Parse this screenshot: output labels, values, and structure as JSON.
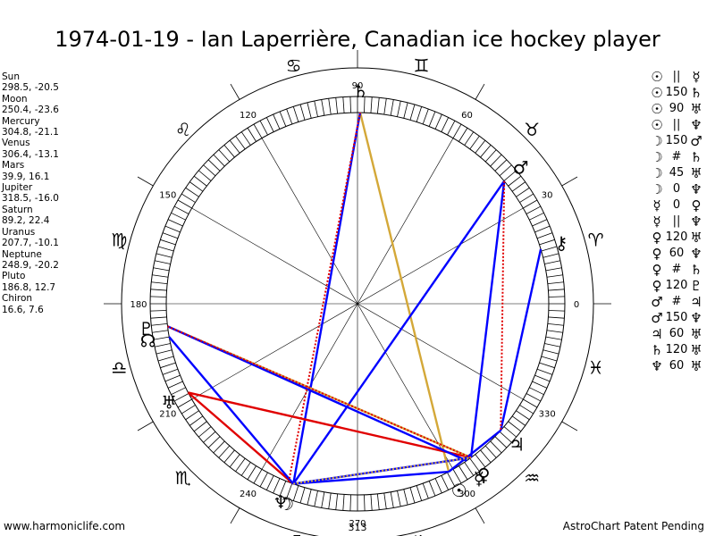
{
  "title": "1974-01-19 - Ian Laperrière, Canadian ice hockey player",
  "footer": {
    "left": "www.harmoniclife.com",
    "right": "AstroChart Patent Pending",
    "bottom_marker": "313"
  },
  "planet_positions": [
    {
      "name": "Sun",
      "values": "298.5, -20.5"
    },
    {
      "name": "Moon",
      "values": "250.4, -23.6"
    },
    {
      "name": "Mercury",
      "values": "304.8, -21.1"
    },
    {
      "name": "Venus",
      "values": "306.4, -13.1"
    },
    {
      "name": "Mars",
      "values": "39.9, 16.1"
    },
    {
      "name": "Jupiter",
      "values": "318.5, -16.0"
    },
    {
      "name": "Saturn",
      "values": "89.2, 22.4"
    },
    {
      "name": "Uranus",
      "values": "207.7, -10.1"
    },
    {
      "name": "Neptune",
      "values": "248.9, -20.2"
    },
    {
      "name": "Pluto",
      "values": "186.8, 12.7"
    },
    {
      "name": "Chiron",
      "values": "16.6, 7.6"
    }
  ],
  "aspects": [
    {
      "p1": "☉",
      "sym": "||",
      "p2": "☿"
    },
    {
      "p1": "☉",
      "sym": "150",
      "p2": "♄"
    },
    {
      "p1": "☉",
      "sym": "90",
      "p2": "♅"
    },
    {
      "p1": "☉",
      "sym": "||",
      "p2": "♆"
    },
    {
      "p1": "☽",
      "sym": "150",
      "p2": "♂"
    },
    {
      "p1": "☽",
      "sym": "#",
      "p2": "♄"
    },
    {
      "p1": "☽",
      "sym": "45",
      "p2": "♅"
    },
    {
      "p1": "☽",
      "sym": "0",
      "p2": "♆"
    },
    {
      "p1": "☿",
      "sym": "0",
      "p2": "♀"
    },
    {
      "p1": "☿",
      "sym": "||",
      "p2": "♆"
    },
    {
      "p1": "♀",
      "sym": "120",
      "p2": "♅"
    },
    {
      "p1": "♀",
      "sym": "60",
      "p2": "♆"
    },
    {
      "p1": "♀",
      "sym": "#",
      "p2": "♄"
    },
    {
      "p1": "♀",
      "sym": "120",
      "p2": "♇"
    },
    {
      "p1": "♂",
      "sym": "#",
      "p2": "♃"
    },
    {
      "p1": "♂",
      "sym": "150",
      "p2": "♆"
    },
    {
      "p1": "♃",
      "sym": "60",
      "p2": "♅"
    },
    {
      "p1": "♄",
      "sym": "120",
      "p2": "♅"
    },
    {
      "p1": "♆",
      "sym": "60",
      "p2": "♅"
    }
  ],
  "wheel": {
    "degree_labels": [
      "0",
      "30",
      "60",
      "90",
      "120",
      "150",
      "180",
      "210",
      "240",
      "270",
      "300",
      "330"
    ],
    "signs": [
      {
        "glyph": "♓",
        "lon": 345
      },
      {
        "glyph": "♒",
        "lon": 315
      },
      {
        "glyph": "♑",
        "lon": 285
      },
      {
        "glyph": "♐",
        "lon": 255
      },
      {
        "glyph": "♏",
        "lon": 225
      },
      {
        "glyph": "♎",
        "lon": 195
      },
      {
        "glyph": "♍",
        "lon": 165
      },
      {
        "glyph": "♌",
        "lon": 135
      },
      {
        "glyph": "♋",
        "lon": 105
      },
      {
        "glyph": "♊",
        "lon": 75
      },
      {
        "glyph": "♉",
        "lon": 45
      },
      {
        "glyph": "♈",
        "lon": 15
      }
    ],
    "planets": [
      {
        "key": "sun",
        "glyph": "☉",
        "lon": 298.5
      },
      {
        "key": "moon",
        "glyph": "☽",
        "lon": 250.4
      },
      {
        "key": "mercury",
        "glyph": "☿",
        "lon": 304.8
      },
      {
        "key": "venus",
        "glyph": "♀",
        "lon": 306.4
      },
      {
        "key": "mars",
        "glyph": "♂",
        "lon": 39.9
      },
      {
        "key": "jupiter",
        "glyph": "♃",
        "lon": 318.5
      },
      {
        "key": "saturn",
        "glyph": "♄",
        "lon": 89.2
      },
      {
        "key": "uranus",
        "glyph": "♅",
        "lon": 207.7
      },
      {
        "key": "neptune",
        "glyph": "♆",
        "lon": 248.9
      },
      {
        "key": "pluto",
        "glyph": "♇",
        "lon": 186.8
      },
      {
        "key": "chiron",
        "glyph": "⚷",
        "lon": 16.6
      },
      {
        "key": "node",
        "glyph": "☊",
        "lon": 190
      }
    ],
    "aspect_lines": [
      {
        "from": "sun",
        "to": "saturn",
        "color": "#d4a838",
        "style": "solid"
      },
      {
        "from": "sun",
        "to": "moon",
        "color": "#0000ff",
        "style": "solid"
      },
      {
        "from": "moon",
        "to": "uranus",
        "color": "#e00000",
        "style": "solid"
      },
      {
        "from": "moon",
        "to": "mars",
        "color": "#0000ff",
        "style": "solid"
      },
      {
        "from": "moon",
        "to": "saturn",
        "color": "#0000ff",
        "style": "solid"
      },
      {
        "from": "moon",
        "to": "venus",
        "color": "#0000ff",
        "style": "solid"
      },
      {
        "from": "moon",
        "to": "node",
        "color": "#0000ff",
        "style": "solid"
      },
      {
        "from": "uranus",
        "to": "venus",
        "color": "#e00000",
        "style": "solid"
      },
      {
        "from": "pluto",
        "to": "venus",
        "color": "#d4a838",
        "style": "solid"
      },
      {
        "from": "pluto",
        "to": "mercury",
        "color": "#0000ff",
        "style": "solid"
      },
      {
        "from": "venus",
        "to": "mars",
        "color": "#0000ff",
        "style": "solid"
      },
      {
        "from": "sun",
        "to": "jupiter",
        "color": "#0000ff",
        "style": "solid"
      },
      {
        "from": "jupiter",
        "to": "chiron",
        "color": "#0000ff",
        "style": "solid"
      },
      {
        "from": "neptune",
        "to": "saturn",
        "color": "#e00000",
        "style": "dotted"
      },
      {
        "from": "mars",
        "to": "jupiter",
        "color": "#e00000",
        "style": "dotted"
      },
      {
        "from": "pluto",
        "to": "venus",
        "color": "#e00000",
        "style": "dotted"
      },
      {
        "from": "moon",
        "to": "venus",
        "color": "#d4a838",
        "style": "dotted"
      }
    ]
  }
}
